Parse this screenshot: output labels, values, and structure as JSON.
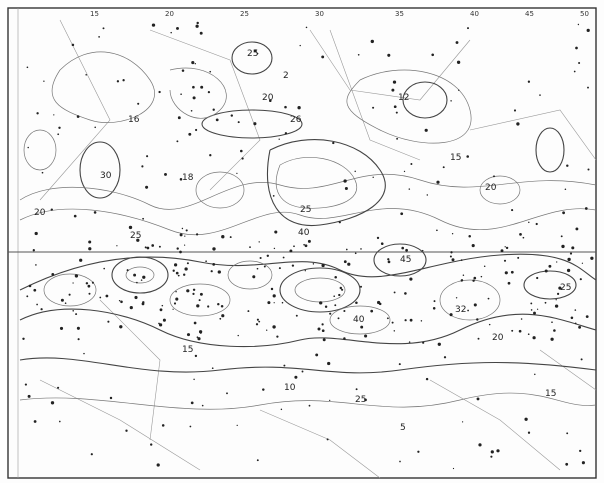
{
  "map": {
    "description_labels": {
      "top_ticks": [
        "15",
        "20",
        "25",
        "30",
        "35",
        "40",
        "45",
        "50"
      ]
    },
    "contour_labels": [
      {
        "id": "c1",
        "text": "25"
      },
      {
        "id": "c2",
        "text": "20"
      },
      {
        "id": "c3",
        "text": "26"
      },
      {
        "id": "c4",
        "text": "16"
      },
      {
        "id": "c5",
        "text": "2"
      },
      {
        "id": "c6",
        "text": "12"
      },
      {
        "id": "c7",
        "text": "30"
      },
      {
        "id": "c8",
        "text": "18"
      },
      {
        "id": "c9",
        "text": "25"
      },
      {
        "id": "c10",
        "text": "20"
      },
      {
        "id": "c11",
        "text": "15"
      },
      {
        "id": "c12",
        "text": "40"
      },
      {
        "id": "c13",
        "text": "45"
      },
      {
        "id": "c14",
        "text": "25"
      },
      {
        "id": "c15",
        "text": "20"
      },
      {
        "id": "c16",
        "text": "25"
      },
      {
        "id": "c17",
        "text": "40"
      },
      {
        "id": "c18",
        "text": "32"
      },
      {
        "id": "c19",
        "text": "25"
      },
      {
        "id": "c20",
        "text": "15"
      },
      {
        "id": "c21",
        "text": "20"
      },
      {
        "id": "c22",
        "text": "10"
      },
      {
        "id": "c23",
        "text": "5"
      },
      {
        "id": "c24",
        "text": "15"
      }
    ]
  }
}
